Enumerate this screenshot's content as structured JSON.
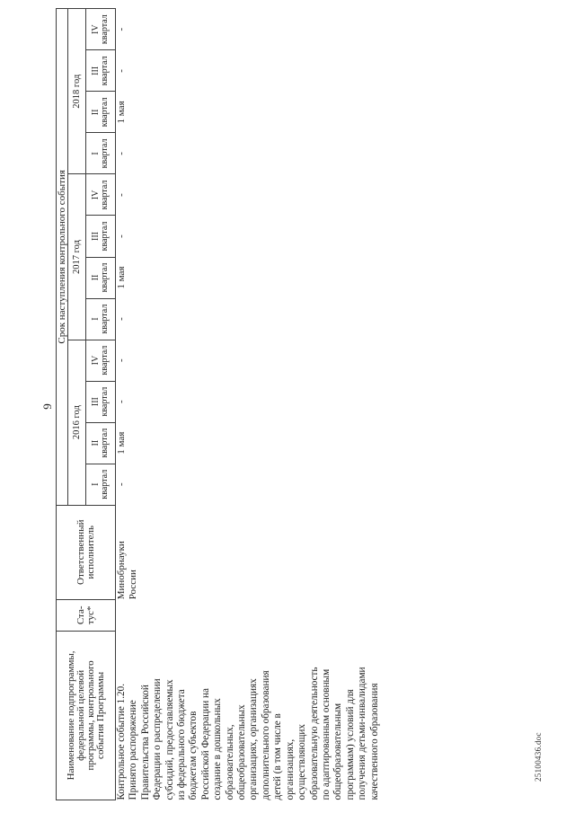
{
  "page": {
    "number": "9",
    "footer": "25100436.doc"
  },
  "table": {
    "header": {
      "name_lines": [
        "Наименование подпрограммы,",
        "федеральной целевой",
        "программы, контрольного",
        "события Программы"
      ],
      "status_lines": [
        "Ста-",
        "тус*"
      ],
      "executor_lines": [
        "Ответственный",
        "исполнитель"
      ],
      "deadline": "Срок наступления контрольного события",
      "years": [
        "2016 год",
        "2017 год",
        "2018 год"
      ],
      "quarters": [
        {
          "num": "I",
          "word": "квартал"
        },
        {
          "num": "II",
          "word": "квартал"
        },
        {
          "num": "III",
          "word": "квартал"
        },
        {
          "num": "IV",
          "word": "квартал"
        }
      ]
    },
    "row": {
      "name_lines": [
        "Контрольное событие 1.20.",
        "Принято распоряжение",
        "Правительства Российской",
        "Федерации о распределении",
        "субсидий, предоставляемых",
        "из федерального бюджета",
        "бюджетам субъектов",
        "Российской Федерации на",
        "создание в дошкольных",
        "образовательных,",
        "общеобразовательных",
        "организациях, организациях",
        "дополнительного образования",
        "детей (в том числе в",
        "организациях,",
        "осуществляющих",
        "образовательную деятельность",
        "по адаптированным основным",
        "общеобразовательным",
        "программам) условий для",
        "получения детьми-инвалидами",
        "качественного образования"
      ],
      "status": "",
      "executor_lines": [
        "Минобрнауки",
        "России"
      ],
      "values": [
        "-",
        "1 мая",
        "-",
        "-",
        "-",
        "1 мая",
        "-",
        "-",
        "-",
        "1 мая",
        "-",
        "-"
      ]
    }
  }
}
